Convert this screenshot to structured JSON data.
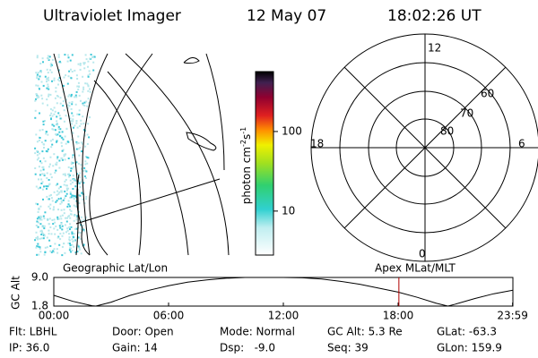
{
  "header": {
    "title": "Ultraviolet Imager",
    "date": "12 May 07",
    "time": "18:02:26 UT"
  },
  "colorbar": {
    "label": "photon cm",
    "exp1": "-2",
    "unit2": "s",
    "exp2": "-1",
    "log": true,
    "lim": [
      2.8,
      566
    ],
    "ticks": [
      10,
      100
    ]
  },
  "polar": {
    "labels": {
      "top": "12",
      "left": "18",
      "right": "6",
      "bottom": "0"
    },
    "rings": [
      "60",
      "70",
      "80"
    ]
  },
  "altitude_plot": {
    "type": "line",
    "left_title": "Geographic Lat/Lon",
    "right_title": "Apex MLat/MLT",
    "ylabel": "GC Alt",
    "x": [
      0,
      1,
      2,
      2.2,
      3,
      4,
      5,
      6,
      7,
      8,
      9,
      10,
      11,
      12,
      13,
      14,
      15,
      16,
      17,
      18,
      19,
      20,
      20.6,
      21,
      22,
      23,
      24
    ],
    "values": [
      4.5,
      3.0,
      1.9,
      1.8,
      2.8,
      4.5,
      5.8,
      6.9,
      7.8,
      8.4,
      8.8,
      9.0,
      9.0,
      9.0,
      8.9,
      8.6,
      8.0,
      7.3,
      6.3,
      5.3,
      4.0,
      2.5,
      1.8,
      2.3,
      3.7,
      4.9,
      5.8
    ],
    "ylim": [
      1.8,
      9.0
    ],
    "yticks": [
      {
        "value": 9,
        "label": "9.0"
      },
      {
        "value": 1.8,
        "label": "1.8"
      }
    ],
    "xlim": [
      0,
      24
    ],
    "xticks": [
      {
        "value": 0,
        "label": "00:00"
      },
      {
        "value": 6,
        "label": "06:00"
      },
      {
        "value": 12,
        "label": "12:00"
      },
      {
        "value": 18,
        "label": "18:00"
      },
      {
        "value": 23.983,
        "label": "23:59"
      }
    ],
    "marker_x": 18.04,
    "color": "#000000",
    "marker_color": "#b00000"
  },
  "footer": {
    "rows": [
      [
        "Flt: LBHL",
        "Door: Open",
        "Mode: Normal",
        "GC Alt: 5.3 Re",
        "GLat: -63.3"
      ],
      [
        "IP: 36.0",
        "Gain: 14",
        "Dsp:   -9.0",
        "Seq: 39",
        "GLon: 159.9"
      ]
    ]
  }
}
